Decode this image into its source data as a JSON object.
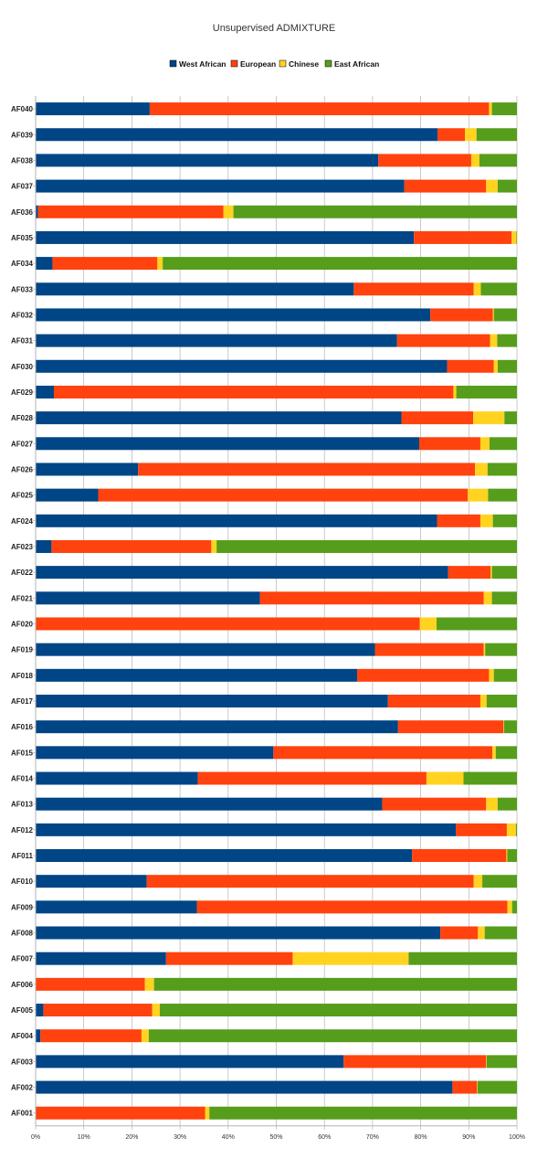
{
  "chart_data": {
    "type": "bar",
    "orientation": "horizontal",
    "stacked": true,
    "title": "Unsupervised ADMIXTURE",
    "legend_position": "top",
    "grid": true,
    "xlim": [
      0,
      100
    ],
    "x_ticks": [
      "0%",
      "10%",
      "20%",
      "30%",
      "40%",
      "50%",
      "60%",
      "70%",
      "80%",
      "90%",
      "100%"
    ],
    "categories": [
      "AF040",
      "AF039",
      "AF038",
      "AF037",
      "AF036",
      "AF035",
      "AF034",
      "AF033",
      "AF032",
      "AF031",
      "AF030",
      "AF029",
      "AF028",
      "AF027",
      "AF026",
      "AF025",
      "AF024",
      "AF023",
      "AF022",
      "AF021",
      "AF020",
      "AF019",
      "AF018",
      "AF017",
      "AF016",
      "AF015",
      "AF014",
      "AF013",
      "AF012",
      "AF011",
      "AF010",
      "AF009",
      "AF008",
      "AF007",
      "AF006",
      "AF005",
      "AF004",
      "AF003",
      "AF002",
      "AF001"
    ],
    "series": [
      {
        "name": "West African",
        "color": "#004586",
        "values": [
          23.7,
          83.5,
          71.2,
          76.6,
          0.5,
          78.6,
          3.5,
          66.1,
          82.0,
          75.1,
          85.5,
          3.8,
          76.0,
          79.7,
          21.3,
          13.0,
          83.4,
          3.3,
          85.7,
          46.6,
          0.0,
          70.5,
          66.8,
          73.2,
          75.3,
          49.4,
          33.7,
          72.0,
          87.3,
          78.2,
          23.1,
          33.5,
          84.1,
          27.1,
          0.0,
          1.6,
          1.0,
          64.0,
          86.6,
          0.0
        ]
      },
      {
        "name": "European",
        "color": "#ff420e",
        "values": [
          70.5,
          5.7,
          19.3,
          17.0,
          38.5,
          20.3,
          21.8,
          24.9,
          13.0,
          19.3,
          9.7,
          83.0,
          14.9,
          12.7,
          70.0,
          76.8,
          9.0,
          33.2,
          8.8,
          46.5,
          79.8,
          22.6,
          27.4,
          19.2,
          21.9,
          45.5,
          47.5,
          21.6,
          10.6,
          19.6,
          67.9,
          64.5,
          7.8,
          26.3,
          22.7,
          22.6,
          21.0,
          29.6,
          5.1,
          35.2
        ]
      },
      {
        "name": "Chinese",
        "color": "#ffd320",
        "values": [
          0.6,
          2.4,
          1.7,
          2.4,
          2.1,
          1.0,
          1.1,
          1.5,
          0.2,
          1.5,
          0.8,
          0.6,
          6.5,
          1.9,
          2.6,
          4.2,
          2.6,
          1.1,
          0.3,
          1.7,
          3.5,
          0.3,
          1.0,
          1.3,
          0.1,
          0.7,
          7.7,
          2.4,
          1.9,
          0.2,
          1.8,
          1.0,
          1.4,
          24.1,
          1.9,
          1.6,
          1.5,
          0.1,
          0.1,
          0.9
        ]
      },
      {
        "name": "East African",
        "color": "#579d1c",
        "values": [
          5.2,
          8.4,
          7.8,
          4.0,
          58.9,
          0.1,
          73.6,
          7.5,
          4.8,
          4.1,
          4.0,
          12.6,
          2.6,
          5.7,
          6.1,
          6.0,
          5.0,
          62.4,
          5.2,
          5.2,
          16.7,
          6.6,
          4.8,
          6.3,
          2.7,
          4.4,
          11.1,
          4.0,
          0.2,
          2.0,
          7.2,
          1.0,
          6.7,
          22.5,
          75.4,
          74.2,
          76.5,
          6.3,
          8.2,
          63.9
        ]
      }
    ]
  }
}
